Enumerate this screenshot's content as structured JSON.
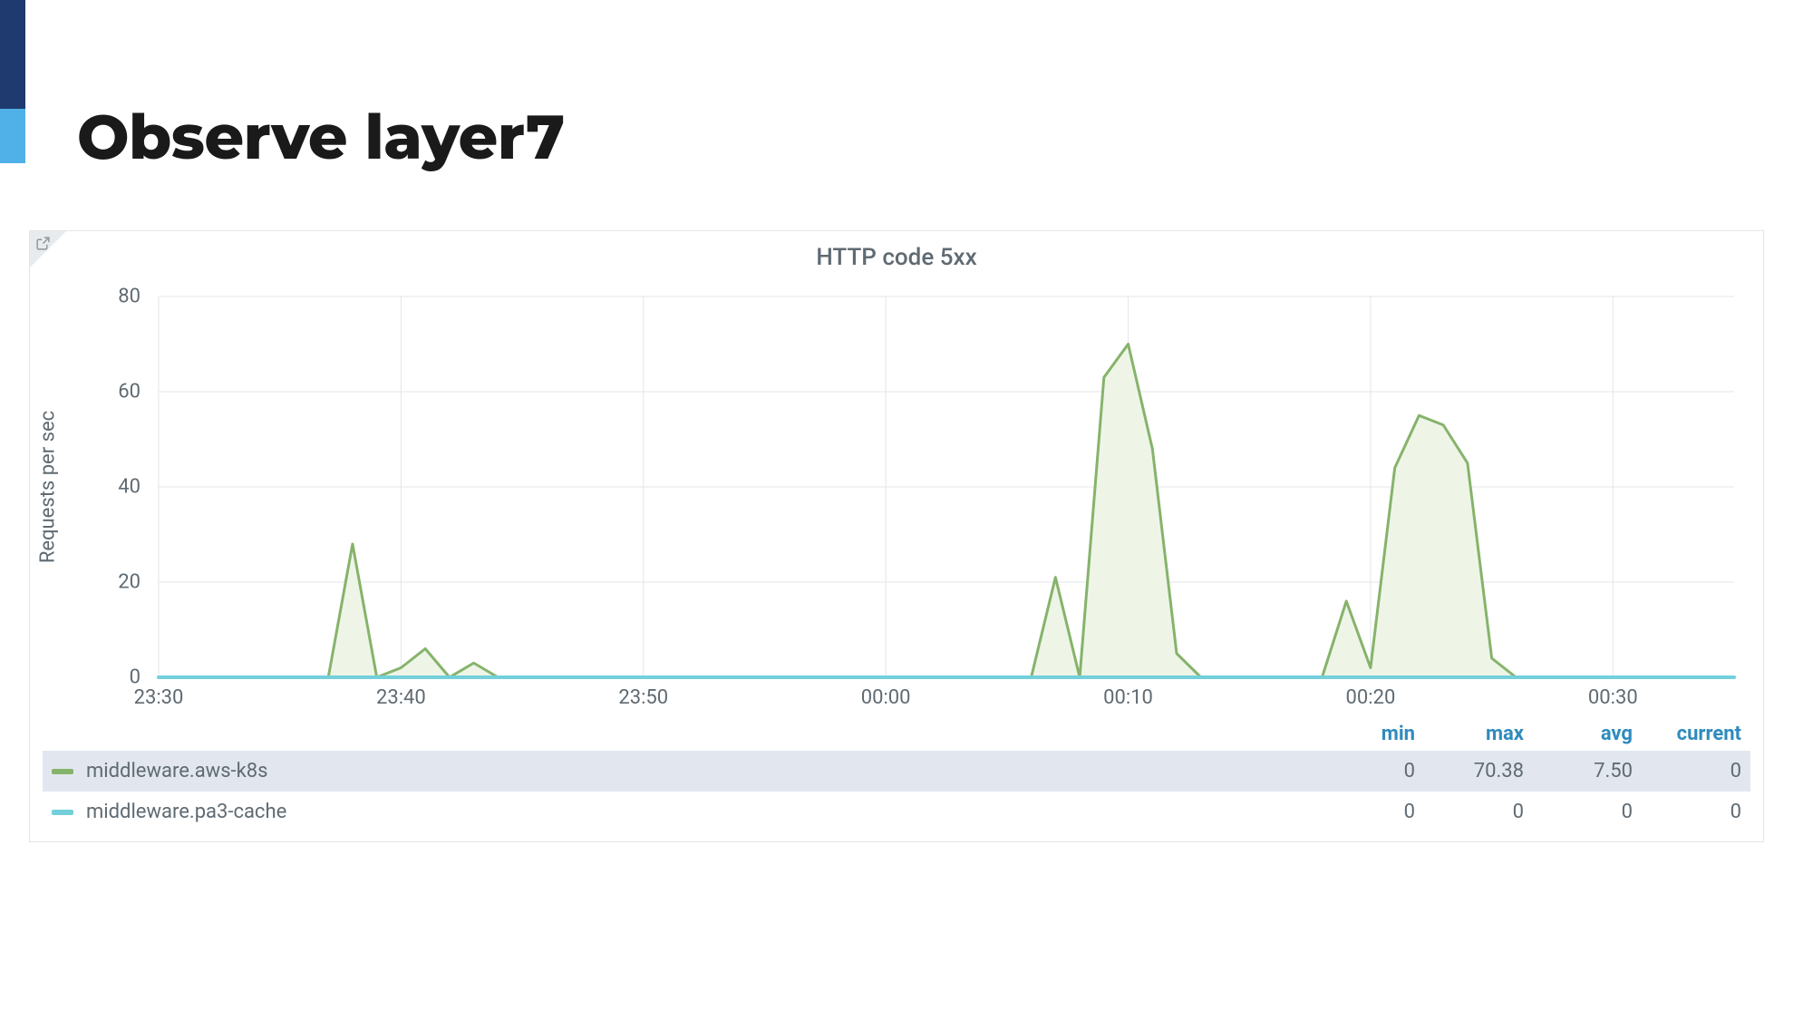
{
  "page": {
    "title": "Observe layer7"
  },
  "accent": {
    "dark": "#1f3a6e",
    "light": "#4fb1e8"
  },
  "panel": {
    "title": "HTTP code 5xx",
    "border_color": "#e3e5e8",
    "corner_bg": "#e8ebee",
    "corner_icon_color": "#8f9498"
  },
  "chart": {
    "type": "area-line",
    "background_color": "#ffffff",
    "grid_color": "#e3e5e8",
    "label_fontsize": 22,
    "tick_fontsize": 22,
    "tick_color": "#5f6a72",
    "y_label": "Requests per sec",
    "ylim": [
      0,
      80
    ],
    "ytick_step": 20,
    "x_ticks": [
      "23:30",
      "23:40",
      "23:50",
      "00:00",
      "00:10",
      "00:20",
      "00:30"
    ],
    "x_domain_minutes": [
      0,
      65
    ],
    "x_tick_minutes": [
      0,
      10,
      20,
      30,
      40,
      50,
      60
    ],
    "series": [
      {
        "name": "middleware.aws-k8s",
        "color": "#86b36b",
        "fill_color": "#eef5e7",
        "line_width": 3,
        "x": [
          0,
          7,
          8,
          9,
          10,
          11,
          12,
          13,
          14,
          36,
          37,
          38,
          39,
          40,
          41,
          42,
          43,
          44,
          48,
          49,
          50,
          51,
          52,
          53,
          54,
          55,
          56,
          65
        ],
        "y": [
          0,
          0,
          28,
          0,
          2,
          6,
          0,
          3,
          0,
          0,
          21,
          0,
          63,
          70,
          48,
          5,
          0,
          0,
          0,
          16,
          2,
          44,
          55,
          53,
          45,
          4,
          0,
          0
        ]
      },
      {
        "name": "middleware.pa3-cache",
        "color": "#73d0db",
        "fill_color": "#eef5e7",
        "line_width": 4,
        "x": [
          0,
          65
        ],
        "y": [
          0,
          0
        ]
      }
    ]
  },
  "legend": {
    "columns": [
      "min",
      "max",
      "avg",
      "current"
    ],
    "header_color": "#2f8bbd",
    "row_alt_bg": "#e2e7ef",
    "rows": [
      {
        "swatch": "#86b36b",
        "name": "middleware.aws-k8s",
        "min": "0",
        "max": "70.38",
        "avg": "7.50",
        "current": "0"
      },
      {
        "swatch": "#73d0db",
        "name": "middleware.pa3-cache",
        "min": "0",
        "max": "0",
        "avg": "0",
        "current": "0"
      }
    ]
  }
}
